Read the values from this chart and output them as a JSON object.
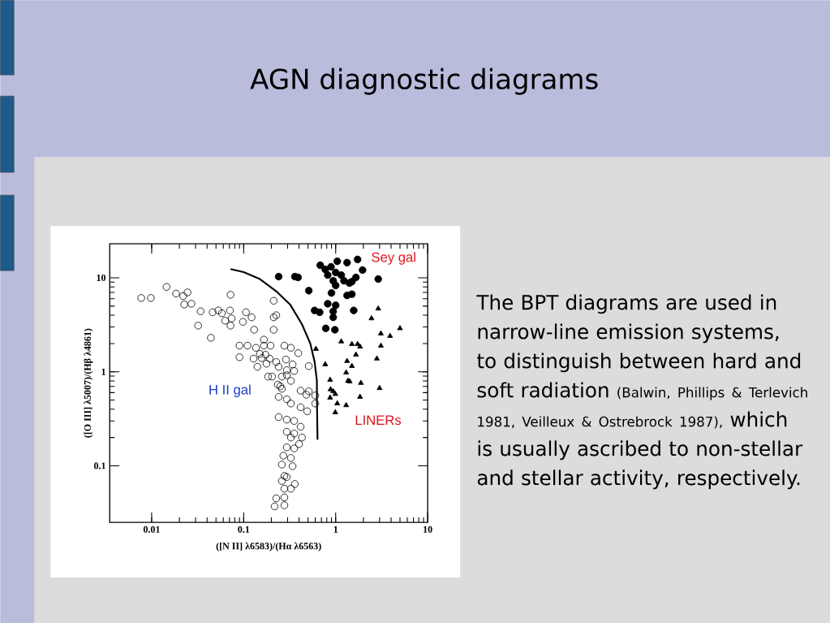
{
  "chart_data": {
    "type": "scatter",
    "title": "AGN diagnostic diagrams",
    "xlabel": "([N II] λ6583)/(Hα λ6563)",
    "ylabel": "([O III] λ5007)/(Hβ λ4861)",
    "log": "xy",
    "xlim": [
      0.0035,
      10
    ],
    "ylim": [
      0.025,
      23
    ],
    "xticks": [
      0.01,
      0.1,
      1,
      10
    ],
    "yticks": [
      0.1,
      1,
      10
    ],
    "grid": false,
    "series": [
      {
        "name": "H II gal",
        "color": "#000000",
        "marker": "circle",
        "x": [
          0.0077,
          0.0098,
          0.0145,
          0.0184,
          0.022,
          0.0245,
          0.0226,
          0.027,
          0.072,
          0.034,
          0.046,
          0.053,
          0.058,
          0.071,
          0.063,
          0.074,
          0.072,
          0.032,
          0.106,
          0.122,
          0.098,
          0.13,
          0.044,
          0.09,
          0.11,
          0.136,
          0.166,
          0.196,
          0.09,
          0.128,
          0.141,
          0.157,
          0.173,
          0.192,
          0.177,
          0.184,
          0.204,
          0.212,
          0.212,
          0.212,
          0.226,
          0.166,
          0.277,
          0.326,
          0.392,
          0.15,
          0.226,
          0.288,
          0.34,
          0.51,
          0.24,
          0.294,
          0.354,
          0.26,
          0.294,
          0.326,
          0.235,
          0.26,
          0.416,
          0.51,
          0.6,
          0.326,
          0.416,
          0.6,
          0.25,
          0.24,
          0.294,
          0.48,
          0.49,
          0.24,
          0.294,
          0.354,
          0.416,
          0.294,
          0.354,
          0.326,
          0.43,
          0.4,
          0.294,
          0.354,
          0.27,
          0.326,
          0.34,
          0.26,
          0.277,
          0.26,
          0.294,
          0.36,
          0.326,
          0.277,
          0.277,
          0.226,
          0.217,
          0.277
        ],
        "values": [
          6.1,
          6.1,
          8.0,
          6.8,
          6.4,
          7.0,
          5.2,
          5.3,
          6.6,
          4.4,
          4.3,
          4.5,
          4.2,
          4.5,
          3.5,
          3.7,
          3.1,
          3.1,
          4.3,
          3.8,
          3.4,
          2.8,
          2.3,
          1.9,
          1.9,
          1.8,
          2.2,
          1.9,
          1.43,
          1.38,
          1.13,
          1.4,
          1.52,
          1.38,
          1.22,
          0.89,
          0.89,
          5.7,
          3.8,
          2.8,
          4.0,
          1.9,
          1.9,
          1.8,
          1.58,
          1.55,
          1.27,
          1.35,
          1.2,
          1.15,
          1.13,
          1.04,
          1.02,
          0.89,
          0.92,
          0.8,
          0.73,
          0.66,
          0.63,
          0.62,
          0.56,
          0.46,
          0.42,
          0.46,
          0.7,
          0.54,
          0.51,
          0.57,
          0.38,
          0.33,
          0.31,
          0.3,
          0.26,
          0.23,
          0.22,
          0.2,
          0.2,
          0.17,
          0.157,
          0.153,
          0.128,
          0.121,
          0.099,
          0.103,
          0.078,
          0.069,
          0.076,
          0.064,
          0.057,
          0.057,
          0.046,
          0.045,
          0.037,
          0.038
        ]
      },
      {
        "name": "Sey gal",
        "color": "#000000",
        "marker": "circle",
        "x": [
          0.24,
          0.36,
          0.39,
          0.51,
          0.68,
          0.77,
          0.89,
          1.04,
          1.33,
          1.73,
          0.82,
          1.0,
          1.15,
          0.94,
          1.23,
          1.5,
          1.66,
          1.96,
          2.9,
          1.0,
          0.9,
          1.33,
          1.5,
          0.82,
          1.0,
          0.94,
          0.94,
          0.59,
          0.67,
          1.57,
          0.78,
          0.98,
          1.41
        ],
        "values": [
          10.3,
          10.3,
          10.1,
          7.3,
          13.6,
          12.3,
          13.1,
          15.0,
          14.5,
          15.7,
          10.7,
          11.4,
          10.7,
          9.3,
          9.3,
          9.1,
          10.1,
          12.1,
          9.7,
          8.3,
          6.9,
          6.5,
          6.7,
          5.3,
          5.1,
          4.4,
          3.8,
          4.5,
          4.3,
          4.5,
          2.9,
          2.8,
          8.8
        ]
      },
      {
        "name": "LINERs",
        "color": "#000000",
        "marker": "triangle",
        "x": [
          2.9,
          2.45,
          5.0,
          3.1,
          3.9,
          1.15,
          1.5,
          1.73,
          1.84,
          3.1,
          0.61,
          1.66,
          1.33,
          2.8,
          0.77,
          1.5,
          1.3,
          0.87,
          1.36,
          1.42,
          1.88,
          3.0,
          0.88,
          0.94,
          0.87,
          1.84,
          1.04,
          1.3,
          0.99,
          0.99
        ],
        "values": [
          4.7,
          3.7,
          2.9,
          2.55,
          2.4,
          2.1,
          1.97,
          1.97,
          1.85,
          1.89,
          1.75,
          1.52,
          1.3,
          1.38,
          1.2,
          1.15,
          0.98,
          0.82,
          0.8,
          0.79,
          0.76,
          0.67,
          0.65,
          0.62,
          0.53,
          0.54,
          0.46,
          0.44,
          0.58,
          0.37
        ]
      },
      {
        "type": "line",
        "color": "#000000",
        "line_style": "solid",
        "x": [
          0.072,
          0.1,
          0.15,
          0.226,
          0.32,
          0.43,
          0.53,
          0.59,
          0.625,
          0.625,
          0.635
        ],
        "values": [
          12.4,
          11.5,
          9.7,
          7.2,
          5.2,
          3.2,
          2.0,
          1.28,
          0.8,
          0.54,
          0.19
        ]
      }
    ],
    "annotations": [
      "The BPT diagrams are used in narrow-line emission systems, to distinguish between hard and soft radiation",
      "(Balwin, Phillips & Terlevich 1981, Veilleux & Ostrebrock 1987),",
      "which is usually ascribed to non-stellar and stellar activity, respectively."
    ]
  }
}
